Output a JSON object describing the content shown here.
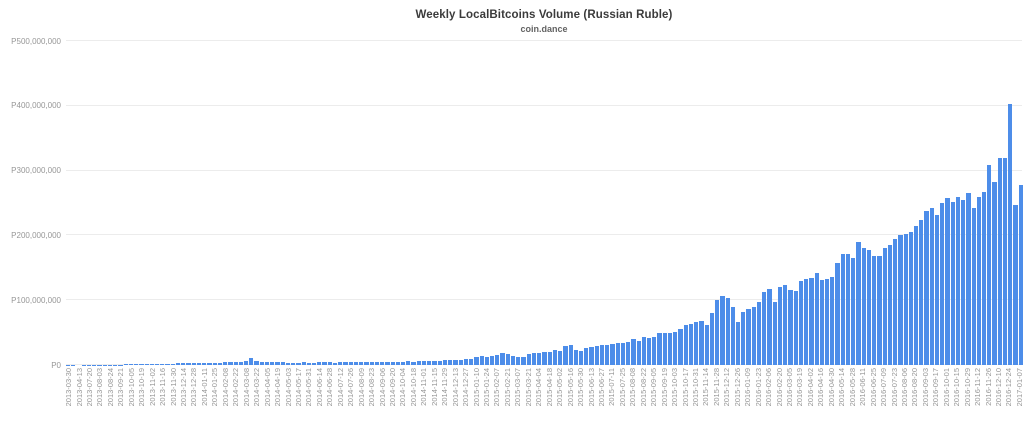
{
  "chart": {
    "title": "Weekly LocalBitcoins Volume (Russian Ruble)",
    "subtitle": "coin.dance"
  },
  "style": {
    "bar_color": "#4d8de9",
    "grid_color": "#ececec",
    "axis_label_color": "#979797",
    "title_color": "#3b3b3b",
    "background": "#ffffff"
  },
  "chart_data": {
    "type": "bar",
    "title": "Weekly LocalBitcoins Volume (Russian Ruble)",
    "subtitle": "coin.dance",
    "xlabel": "",
    "ylabel": "",
    "currency_prefix": "P",
    "ylim": [
      0,
      500000000
    ],
    "y_tick_labels_bottom_to_top": [
      "P0",
      "P100,000,000",
      "P200,000,000",
      "P300,000,000",
      "P400,000,000",
      "P500,000,000"
    ],
    "grid": true,
    "legend": false,
    "bars_total": 183,
    "x_label_every_n_bars": 2,
    "values_unit": "millions of rubles (estimated from gridlines)",
    "x_labels": [
      "2013-03-30",
      "2013-04-13",
      "2013-07-20",
      "2013-08-03",
      "2013-08-24",
      "2013-09-21",
      "2013-10-05",
      "2013-10-19",
      "2013-11-02",
      "2013-11-16",
      "2013-11-30",
      "2013-12-14",
      "2013-12-28",
      "2014-01-11",
      "2014-01-25",
      "2014-02-08",
      "2014-02-22",
      "2014-03-08",
      "2014-03-22",
      "2014-04-05",
      "2014-04-19",
      "2014-05-03",
      "2014-05-17",
      "2014-05-31",
      "2014-06-14",
      "2014-06-28",
      "2014-07-12",
      "2014-07-26",
      "2014-08-09",
      "2014-08-23",
      "2014-09-06",
      "2014-09-20",
      "2014-10-04",
      "2014-10-18",
      "2014-11-01",
      "2014-11-15",
      "2014-11-29",
      "2014-12-13",
      "2014-12-27",
      "2015-01-10",
      "2015-01-24",
      "2015-02-07",
      "2015-02-21",
      "2015-03-07",
      "2015-03-21",
      "2015-04-04",
      "2015-04-18",
      "2015-05-02",
      "2015-05-16",
      "2015-05-30",
      "2015-06-13",
      "2015-06-27",
      "2015-07-11",
      "2015-07-25",
      "2015-08-08",
      "2015-08-22",
      "2015-09-05",
      "2015-09-19",
      "2015-10-03",
      "2015-10-17",
      "2015-10-31",
      "2015-11-14",
      "2015-11-28",
      "2015-12-12",
      "2015-12-26",
      "2016-01-09",
      "2016-01-23",
      "2016-02-06",
      "2016-02-20",
      "2016-03-05",
      "2016-03-19",
      "2016-04-02",
      "2016-04-16",
      "2016-04-30",
      "2016-05-14",
      "2016-05-28",
      "2016-06-11",
      "2016-06-25",
      "2016-07-09",
      "2016-07-23",
      "2016-08-06",
      "2016-08-20",
      "2016-09-03",
      "2016-09-17",
      "2016-10-01",
      "2016-10-15",
      "2016-10-29",
      "2016-11-12",
      "2016-11-26",
      "2016-12-10",
      "2016-12-24",
      "2017-01-07"
    ],
    "values_millions": [
      0.3,
      0.2,
      0.1,
      0.2,
      0.2,
      0.3,
      0.3,
      0.4,
      0.5,
      0.6,
      0.7,
      0.8,
      0.9,
      1.0,
      1.1,
      1.2,
      1.3,
      1.4,
      1.6,
      2.0,
      2.3,
      2.6,
      2.8,
      3.0,
      3.0,
      3.2,
      3.3,
      3.4,
      3.6,
      3.8,
      4.0,
      4.2,
      4.5,
      5.0,
      6.2,
      11.0,
      6.5,
      5.0,
      4.5,
      4.2,
      4.0,
      4.0,
      3.8,
      3.6,
      3.8,
      4.0,
      3.6,
      3.8,
      4.0,
      4.2,
      4.0,
      3.8,
      4.0,
      4.2,
      4.4,
      4.2,
      4.4,
      4.6,
      4.5,
      4.8,
      5.0,
      4.8,
      5.2,
      5.0,
      5.4,
      5.6,
      5.4,
      5.8,
      6.0,
      5.8,
      6.2,
      6.5,
      7.0,
      7.5,
      8.0,
      8.5,
      9.0,
      10.0,
      12.0,
      14.0,
      12.5,
      13.5,
      16.0,
      18.0,
      16.5,
      14.0,
      13.0,
      12.0,
      16.5,
      18.0,
      19.0,
      20.5,
      20.5,
      23.0,
      22.0,
      29.5,
      31.0,
      23.0,
      22.0,
      25.5,
      28.5,
      29.5,
      31.0,
      31.0,
      32.5,
      34.5,
      33.5,
      36.0,
      39.5,
      37.5,
      42.5,
      41.0,
      43.5,
      49.0,
      50.0,
      49.0,
      51.5,
      55.0,
      61.5,
      63.5,
      67.0,
      68.5,
      62.0,
      80,
      100,
      106,
      104,
      90,
      67,
      82,
      86,
      89,
      98,
      112,
      117,
      98,
      120,
      123,
      115,
      114,
      129,
      132,
      134,
      142,
      131,
      133,
      136,
      157,
      171,
      171,
      165,
      190,
      180,
      177,
      168,
      168,
      181,
      185,
      195,
      201,
      202,
      206,
      214,
      224,
      237,
      242,
      231,
      250,
      258,
      251,
      259,
      255,
      265,
      242,
      260,
      267,
      308,
      282,
      320,
      320,
      403,
      247,
      278
    ]
  }
}
